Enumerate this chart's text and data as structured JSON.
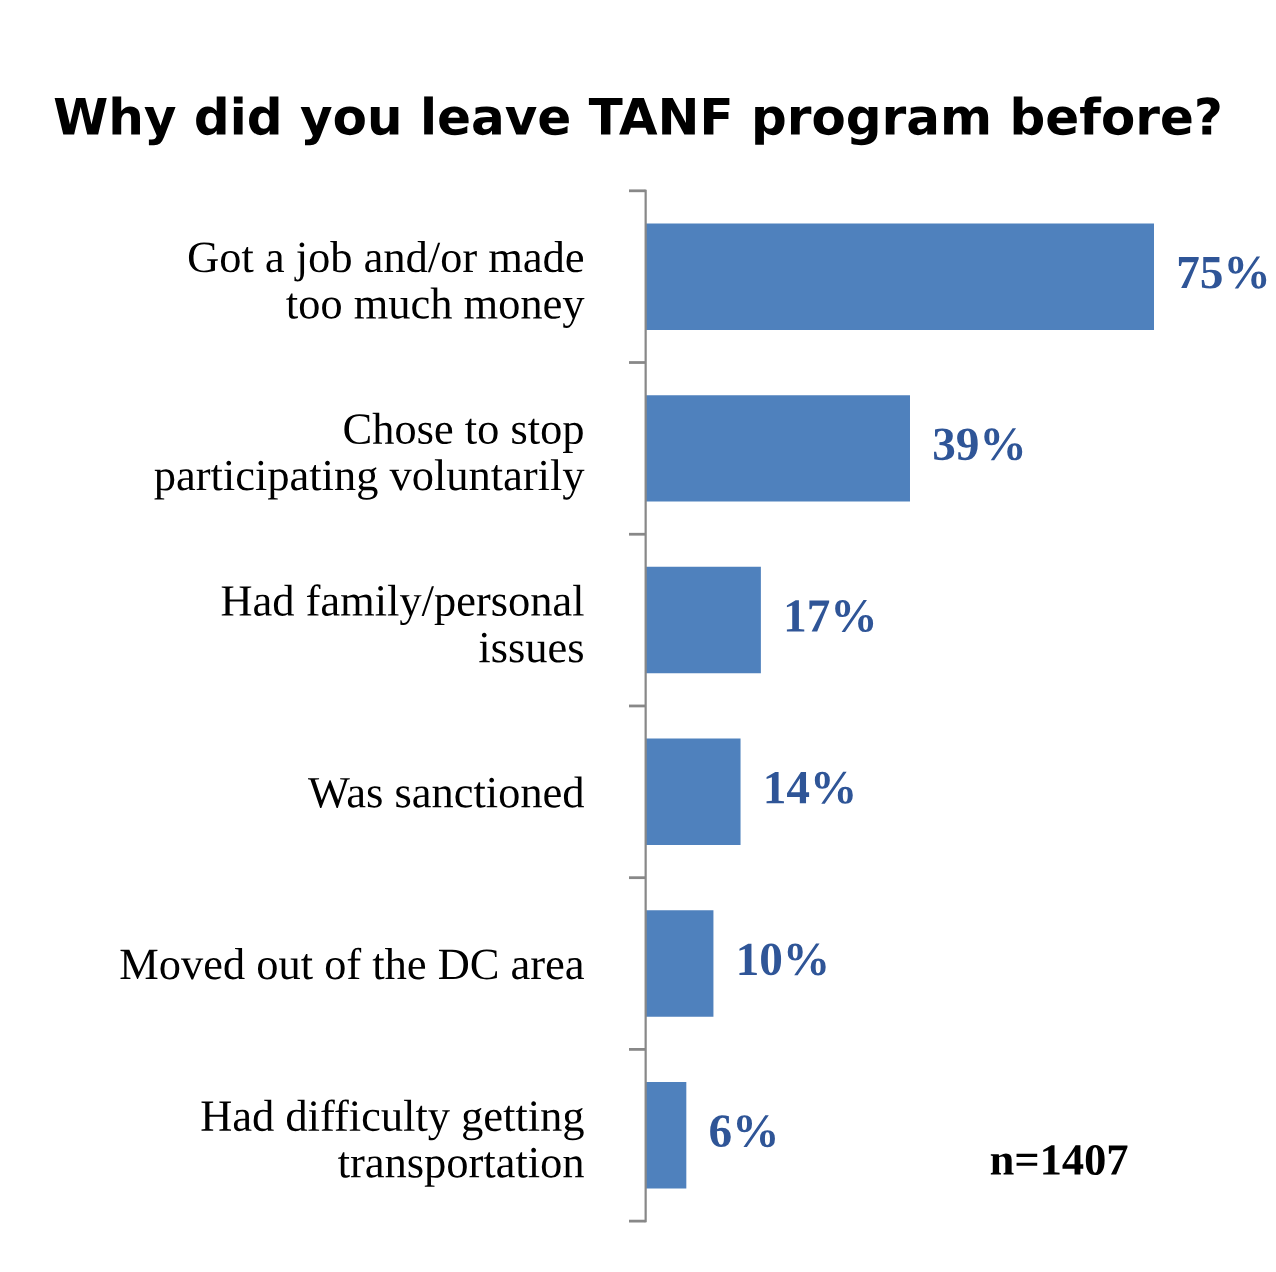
{
  "chart_data": {
    "type": "bar",
    "orientation": "horizontal",
    "title": "Why did you leave TANF program before?",
    "categories": [
      "Got a job and/or made\ntoo much money",
      "Chose to stop\nparticipating voluntarily",
      "Had family/personal\nissues",
      "Was sanctioned",
      "Moved out of the DC area",
      "Had difficulty getting\ntransportation"
    ],
    "values": [
      75,
      39,
      17,
      14,
      10,
      6
    ],
    "value_labels": [
      "75%",
      "39%",
      "17%",
      "14%",
      "10%",
      "6%"
    ],
    "color": "#4f81bd",
    "annotations": [
      "n=1407"
    ],
    "grid": false,
    "legend": false
  }
}
